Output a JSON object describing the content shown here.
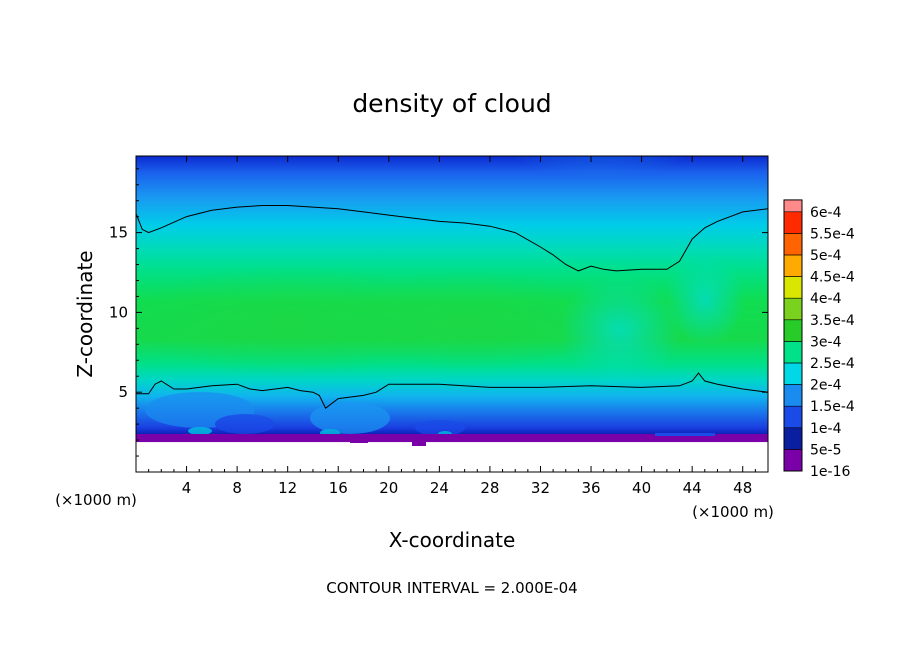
{
  "chart_data": {
    "type": "heatmap",
    "title": "density of cloud",
    "xlabel": "X-coordinate",
    "ylabel": "Z-coordinate",
    "x_units": "(×1000 m)",
    "footer": "CONTOUR INTERVAL = 2.000E-04",
    "xlim": [
      0,
      50
    ],
    "ylim": [
      0,
      19.8
    ],
    "x_ticks": [
      4,
      8,
      12,
      16,
      20,
      24,
      28,
      32,
      36,
      40,
      44,
      48
    ],
    "y_ticks": [
      5,
      10,
      15
    ],
    "contour_interval": 0.0002,
    "colorbar": {
      "labels": [
        "1e-16",
        "5e-5",
        "1e-4",
        "1.5e-4",
        "2e-4",
        "2.5e-4",
        "3e-4",
        "3.5e-4",
        "4e-4",
        "4.5e-4",
        "5e-4",
        "5.5e-4",
        "6e-4"
      ],
      "values": [
        1e-16,
        5e-05,
        0.0001,
        0.00015,
        0.0002,
        0.00025,
        0.0003,
        0.00035,
        0.0004,
        0.00045,
        0.0005,
        0.00055,
        0.0006
      ],
      "colors": [
        "#7a00a8",
        "#0a1ea0",
        "#1a4be8",
        "#1a8cf0",
        "#00d8e6",
        "#00e28a",
        "#28cc28",
        "#7ad21e",
        "#d8e600",
        "#ffaa00",
        "#ff6400",
        "#ff2a00",
        "#ff8a8a"
      ]
    },
    "contour_2e-4_upper": {
      "x": [
        0,
        0.5,
        1,
        2,
        4,
        6,
        8,
        10,
        12,
        14,
        16,
        18,
        20,
        22,
        24,
        26,
        28,
        30,
        32,
        33,
        34,
        35,
        36,
        37,
        38,
        40,
        42,
        43,
        44,
        45,
        46,
        48,
        50
      ],
      "z": [
        16.2,
        15.2,
        15.0,
        15.3,
        16.0,
        16.4,
        16.6,
        16.7,
        16.7,
        16.6,
        16.5,
        16.3,
        16.1,
        15.9,
        15.7,
        15.6,
        15.4,
        15.0,
        14.1,
        13.6,
        13.0,
        12.6,
        12.9,
        12.7,
        12.6,
        12.7,
        12.7,
        13.2,
        14.6,
        15.3,
        15.7,
        16.3,
        16.5
      ]
    },
    "contour_2e-4_lower": {
      "x": [
        0,
        1,
        1.5,
        2,
        3,
        4,
        5,
        6,
        8,
        9,
        10,
        12,
        13,
        14,
        14.5,
        15,
        16,
        18,
        19,
        20,
        22,
        24,
        28,
        32,
        36,
        40,
        43,
        44,
        44.5,
        45,
        46,
        48,
        50
      ],
      "z": [
        4.9,
        4.9,
        5.5,
        5.7,
        5.2,
        5.2,
        5.3,
        5.4,
        5.5,
        5.2,
        5.1,
        5.3,
        5.1,
        5.0,
        4.8,
        4.0,
        4.6,
        4.8,
        5.0,
        5.5,
        5.5,
        5.5,
        5.3,
        5.3,
        5.4,
        5.3,
        5.4,
        5.7,
        6.2,
        5.7,
        5.5,
        5.2,
        5.0
      ]
    }
  }
}
